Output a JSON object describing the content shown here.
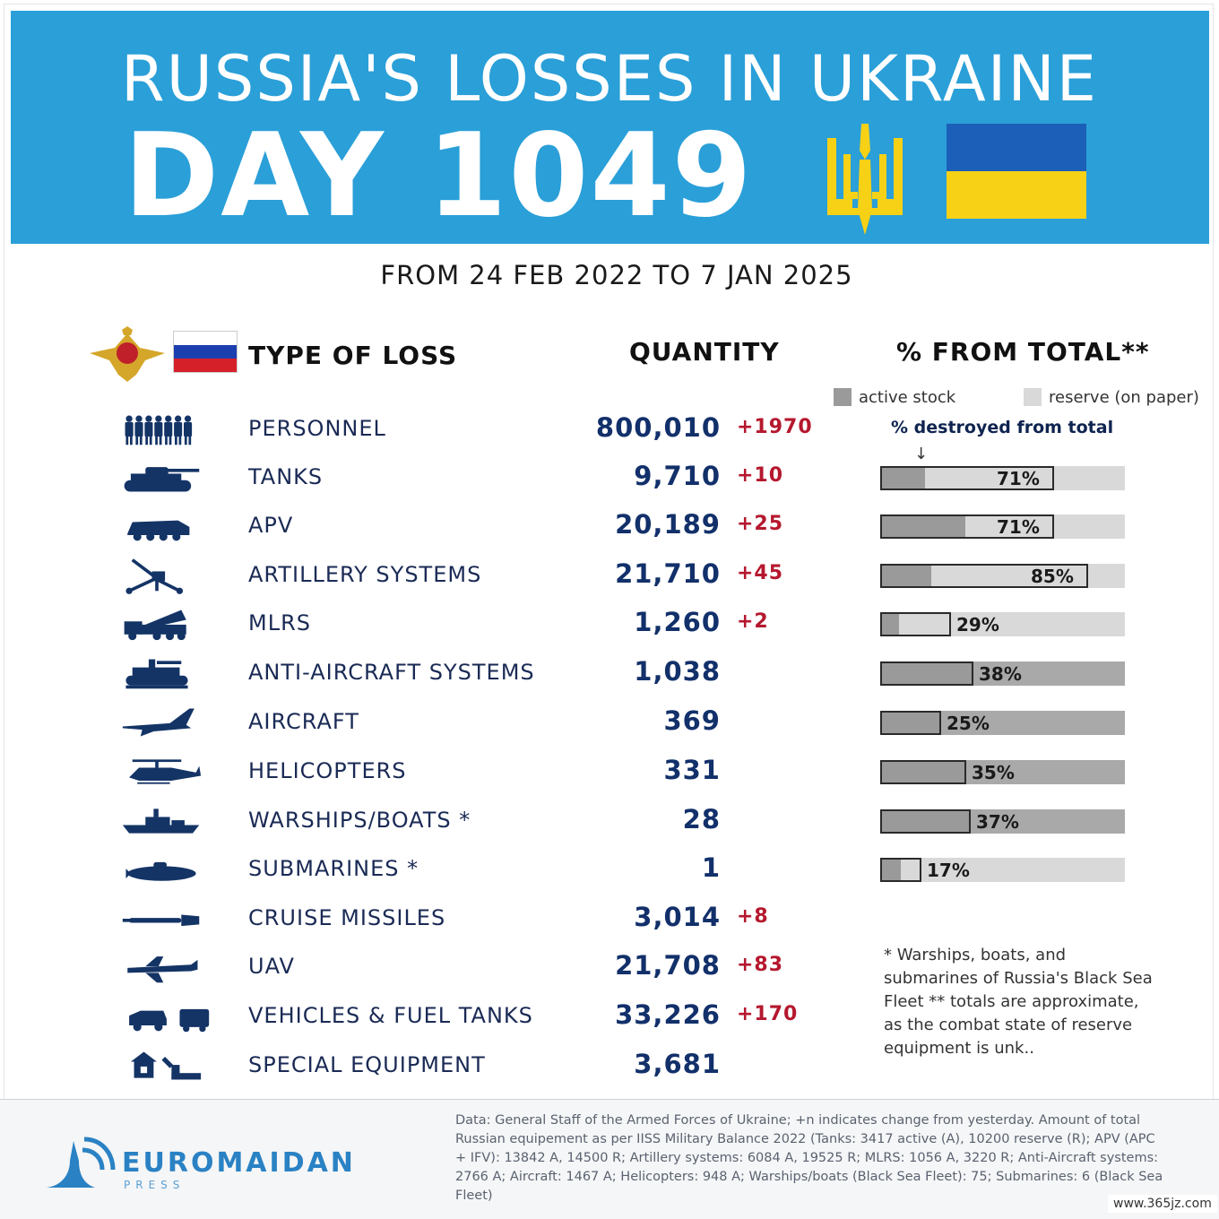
{
  "header": {
    "title": "RUSSIA'S LOSSES IN UKRAINE",
    "day": "DAY 1049",
    "period": "FROM 24 FEB 2022 TO 7 JAN 2025"
  },
  "columns": {
    "type": "TYPE OF LOSS",
    "quantity": "QUANTITY",
    "percent": "% FROM TOTAL**"
  },
  "legend": {
    "active": "active stock",
    "reserve": "reserve (on paper)",
    "destroyed": "% destroyed from total",
    "arrow": "↓",
    "active_color": "#9a9a9a",
    "reserve_color": "#d9d9d9"
  },
  "rows": [
    {
      "icon": "soldiers-icon",
      "label": "PERSONNEL",
      "qty": "800,010",
      "delta": "+1970"
    },
    {
      "icon": "tank-icon",
      "label": "TANKS",
      "qty": "9,710",
      "delta": "+10",
      "pct": "71%",
      "destroyed": 0.71,
      "active_share": 0.25
    },
    {
      "icon": "apv-icon",
      "label": "APV",
      "qty": "20,189",
      "delta": "+25",
      "pct": "71%",
      "destroyed": 0.71,
      "active_share": 0.49
    },
    {
      "icon": "artillery-icon",
      "label": "ARTILLERY SYSTEMS",
      "qty": "21,710",
      "delta": "+45",
      "pct": "85%",
      "destroyed": 0.85,
      "active_share": 0.24
    },
    {
      "icon": "mlrs-icon",
      "label": "MLRS",
      "qty": "1,260",
      "delta": "+2",
      "pct": "29%",
      "destroyed": 0.29,
      "active_share": 0.25
    },
    {
      "icon": "anti-aircraft-icon",
      "label": "ANTI-AIRCRAFT SYSTEMS",
      "qty": "1,038",
      "delta": "",
      "pct": "38%",
      "destroyed": 0.38,
      "active_share": 1.0
    },
    {
      "icon": "aircraft-icon",
      "label": "AIRCRAFT",
      "qty": "369",
      "delta": "",
      "pct": "25%",
      "destroyed": 0.25,
      "active_share": 1.0
    },
    {
      "icon": "helicopter-icon",
      "label": "HELICOPTERS",
      "qty": "331",
      "delta": "",
      "pct": "35%",
      "destroyed": 0.35,
      "active_share": 1.0
    },
    {
      "icon": "warship-icon",
      "label": "WARSHIPS/BOATS *",
      "qty": "28",
      "delta": "",
      "pct": "37%",
      "destroyed": 0.37,
      "active_share": 1.0
    },
    {
      "icon": "submarine-icon",
      "label": "SUBMARINES *",
      "qty": "1",
      "delta": "",
      "pct": "17%",
      "destroyed": 0.17,
      "active_share": 0.49
    },
    {
      "icon": "cruise-missile-icon",
      "label": "CRUISE MISSILES",
      "qty": "3,014",
      "delta": "+8"
    },
    {
      "icon": "uav-icon",
      "label": "UAV",
      "qty": "21,708",
      "delta": "+83"
    },
    {
      "icon": "vehicles-icon",
      "label": "VEHICLES & FUEL TANKS",
      "qty": "33,226",
      "delta": "+170"
    },
    {
      "icon": "special-equipment-icon",
      "label": "SPECIAL EQUIPMENT",
      "qty": "3,681",
      "delta": ""
    }
  ],
  "notes": "* Warships, boats, and submarines of Russia's Black Sea Fleet ** totals are approximate, as the combat state of reserve equipment is unk..",
  "footer": {
    "brand": "EUROMAIDAN",
    "brand_sub": "PRESS",
    "source": "Data: General Staff of the Armed Forces of Ukraine; +n indicates change from yesterday. Amount of total Russian equipement as per IISS Military Balance 2022 (Tanks: 3417 active (A), 10200 reserve (R); APV (APC + IFV): 13842 A, 14500 R; Artillery systems: 6084 A, 19525 R; MLRS: 1056 A, 3220 R; Anti-Aircraft systems: 2766 A; Aircraft: 1467 A; Helicopters: 948 A; Warships/boats (Black Sea Fleet): 75; Submarines: 6 (Black Sea Fleet)",
    "watermark": "www.365jz.com"
  },
  "colors": {
    "banner": "#2a9fd8",
    "ua_blue": "#1c5fb8",
    "ua_yellow": "#f7d116",
    "navy": "#12306a",
    "delta_red": "#b5182e",
    "brand_blue": "#2a82c4"
  }
}
